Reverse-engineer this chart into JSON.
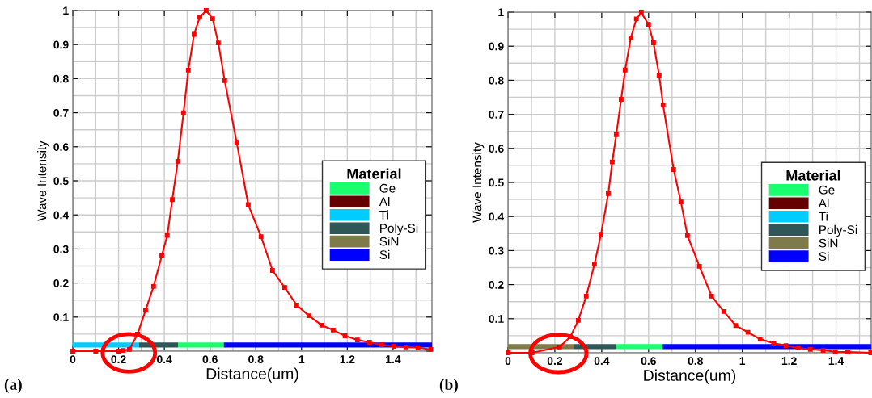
{
  "chart_data": [
    {
      "type": "line",
      "xlabel": "Distance(um)",
      "ylabel": "Wave Intensity",
      "legend_title": "Material",
      "annotations": [
        "(a)"
      ],
      "xlim": [
        0,
        1.57
      ],
      "xticks": [
        0,
        0.2,
        0.4,
        0.6,
        0.8,
        1,
        1.2,
        1.4
      ],
      "ylim": [
        0,
        1
      ],
      "yticks": [
        {
          "value": 0,
          "label": null
        },
        0.1,
        0.2,
        0.3,
        0.4,
        0.5,
        0.6,
        0.7,
        0.8,
        0.9,
        1
      ],
      "grid": true,
      "legend": "right",
      "marker": "square",
      "line_style": "solid",
      "series": [
        {
          "color": "#ff0000",
          "x": [
            0,
            0.1,
            0.2,
            0.22,
            0.247,
            0.283,
            0.318,
            0.353,
            0.389,
            0.413,
            0.435,
            0.459,
            0.484,
            0.505,
            0.53,
            0.555,
            0.583,
            0.611,
            0.636,
            0.664,
            0.717,
            0.767,
            0.823,
            0.873,
            0.926,
            0.979,
            1.032,
            1.088,
            1.138,
            1.19,
            1.244,
            1.297,
            1.35,
            1.403,
            1.456,
            1.509,
            1.565
          ],
          "values": [
            0,
            0,
            0,
            0.002,
            0.005,
            0.05,
            0.12,
            0.19,
            0.28,
            0.34,
            0.445,
            0.557,
            0.7,
            0.825,
            0.93,
            0.98,
            1.0,
            0.976,
            0.905,
            0.794,
            0.611,
            0.43,
            0.336,
            0.237,
            0.187,
            0.135,
            0.104,
            0.076,
            0.062,
            0.045,
            0.033,
            0.026,
            0.019,
            0.014,
            0.012,
            0.01,
            0.005
          ]
        },
        {
          "name": "Ge",
          "color": "#1aff6e",
          "marker": "none",
          "x": [
            0.46,
            0.66
          ],
          "values": [
            0.018,
            0.018
          ]
        },
        {
          "name": "Al",
          "color": "#660000",
          "marker": "none"
        },
        {
          "name": "Ti",
          "color": "#00ccff",
          "marker": "none",
          "x": [
            0,
            0.29
          ],
          "values": [
            0.018,
            0.018
          ]
        },
        {
          "name": "Poly-Si",
          "color": "#2f5758",
          "marker": "none",
          "x": [
            0.29,
            0.46
          ],
          "values": [
            0.018,
            0.018
          ]
        },
        {
          "name": "SiN",
          "color": "#7f7a4a",
          "marker": "none"
        },
        {
          "name": "Si",
          "color": "#0000ff",
          "marker": "none",
          "x": [
            0.66,
            1.57
          ],
          "values": [
            0.018,
            0.018
          ]
        }
      ]
    },
    {
      "type": "line",
      "xlabel": "Distance(um)",
      "ylabel": "Wave Intensity",
      "legend_title": "Material",
      "annotations": [
        "(b)"
      ],
      "xlim": [
        0,
        1.55
      ],
      "xticks": [
        0,
        0.2,
        0.4,
        0.6,
        0.8,
        1,
        1.2,
        1.4
      ],
      "ylim": [
        0,
        1
      ],
      "yticks": [
        {
          "value": 0,
          "label": null
        },
        0.1,
        0.2,
        0.3,
        0.4,
        0.5,
        0.6,
        0.7,
        0.8,
        0.9,
        1
      ],
      "grid": true,
      "legend": "right",
      "marker": "square",
      "line_style": "solid",
      "series": [
        {
          "color": "#ff0000",
          "x": [
            0,
            0.103,
            0.22,
            0.266,
            0.3,
            0.334,
            0.369,
            0.397,
            0.428,
            0.445,
            0.462,
            0.483,
            0.5,
            0.524,
            0.548,
            0.569,
            0.6,
            0.621,
            0.645,
            0.662,
            0.707,
            0.738,
            0.766,
            0.817,
            0.869,
            0.921,
            0.972,
            1.024,
            1.076,
            1.134,
            1.186,
            1.238,
            1.29,
            1.345,
            1.397,
            1.45,
            1.548
          ],
          "values": [
            0,
            0,
            0.017,
            0.047,
            0.095,
            0.166,
            0.26,
            0.348,
            0.467,
            0.56,
            0.64,
            0.744,
            0.83,
            0.924,
            0.98,
            0.998,
            0.964,
            0.91,
            0.815,
            0.727,
            0.538,
            0.443,
            0.344,
            0.254,
            0.166,
            0.121,
            0.08,
            0.06,
            0.04,
            0.028,
            0.021,
            0.014,
            0.01,
            0.007,
            0.003,
            0.002,
            0
          ]
        },
        {
          "name": "Ge",
          "color": "#1aff6e",
          "marker": "none",
          "x": [
            0.46,
            0.66
          ],
          "values": [
            0.018,
            0.018
          ]
        },
        {
          "name": "Al",
          "color": "#660000",
          "marker": "none"
        },
        {
          "name": "Ti",
          "color": "#00ccff",
          "marker": "none"
        },
        {
          "name": "Poly-Si",
          "color": "#2f5758",
          "marker": "none",
          "x": [
            0.28,
            0.46
          ],
          "values": [
            0.018,
            0.018
          ]
        },
        {
          "name": "SiN",
          "color": "#7f7a4a",
          "marker": "none",
          "x": [
            0,
            0.28
          ],
          "values": [
            0.018,
            0.018
          ]
        },
        {
          "name": "Si",
          "color": "#0000ff",
          "marker": "none",
          "x": [
            0.66,
            1.55
          ],
          "values": [
            0.018,
            0.018
          ]
        }
      ]
    }
  ]
}
